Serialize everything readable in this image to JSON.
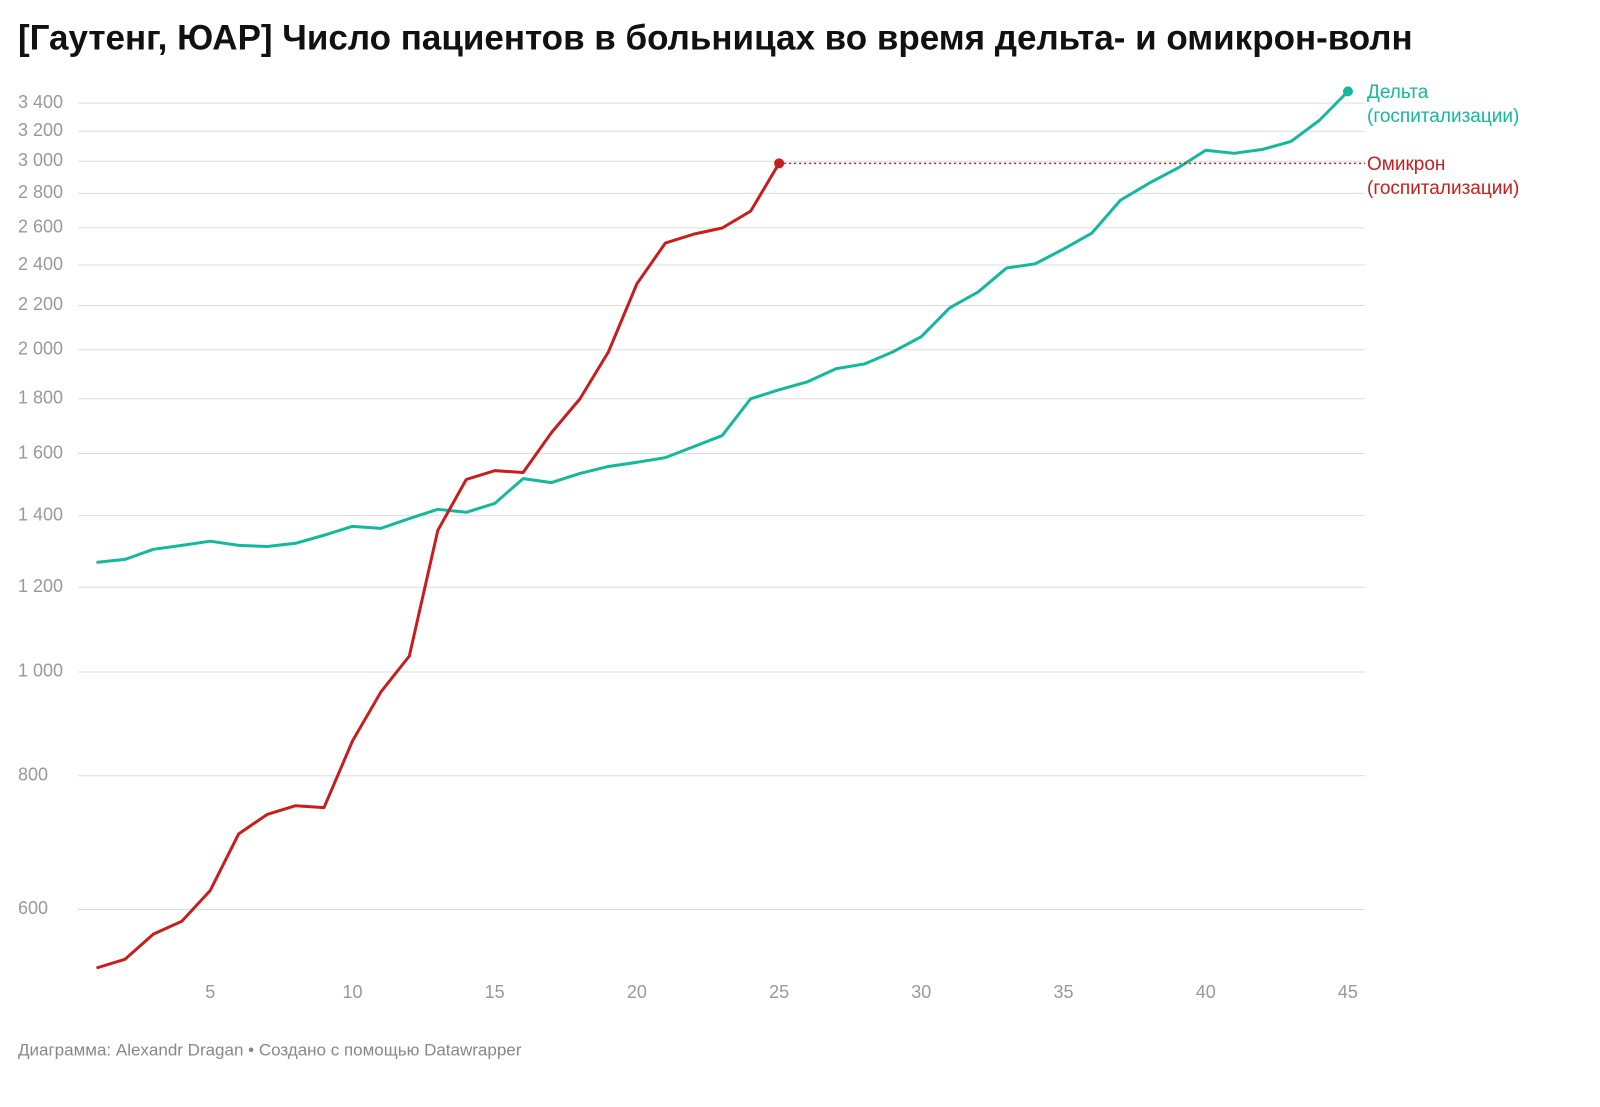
{
  "chart_data": {
    "type": "line",
    "title": "[Гаутенг, ЮАР] Число пациентов в больницах во время дельта- и омикрон-волн",
    "credit": "Диаграмма: Alexandr Dragan • Создано с помощью Datawrapper",
    "log_y": true,
    "grid": true,
    "xlim": [
      0.35,
      45.6
    ],
    "xticks": [
      5,
      10,
      15,
      20,
      25,
      30,
      35,
      40,
      45
    ],
    "ylim": [
      510,
      3520
    ],
    "yticks": [
      {
        "value": 600,
        "label": "600"
      },
      {
        "value": 800,
        "label": "800"
      },
      {
        "value": 1000,
        "label": "1 000"
      },
      {
        "value": 1200,
        "label": "1 200"
      },
      {
        "value": 1400,
        "label": "1 400"
      },
      {
        "value": 1600,
        "label": "1 600"
      },
      {
        "value": 1800,
        "label": "1 800"
      },
      {
        "value": 2000,
        "label": "2 000"
      },
      {
        "value": 2200,
        "label": "2 200"
      },
      {
        "value": 2400,
        "label": "2 400"
      },
      {
        "value": 2600,
        "label": "2 600"
      },
      {
        "value": 2800,
        "label": "2 800"
      },
      {
        "value": 3000,
        "label": "3 000"
      },
      {
        "value": 3200,
        "label": "3 200"
      },
      {
        "value": 3400,
        "label": "3 400"
      }
    ],
    "series": [
      {
        "name": "Дельта (госпитализации)",
        "color": "#14b89c",
        "x": [
          1,
          2,
          3,
          4,
          5,
          6,
          7,
          8,
          9,
          10,
          11,
          12,
          13,
          14,
          15,
          16,
          17,
          18,
          19,
          20,
          21,
          22,
          23,
          24,
          25,
          26,
          27,
          28,
          29,
          30,
          31,
          32,
          33,
          34,
          35,
          36,
          37,
          38,
          39,
          40,
          41,
          42,
          43,
          44,
          45
        ],
        "values": [
          1266,
          1274,
          1302,
          1313,
          1325,
          1313,
          1310,
          1319,
          1342,
          1368,
          1362,
          1391,
          1419,
          1410,
          1437,
          1516,
          1503,
          1533,
          1556,
          1570,
          1586,
          1624,
          1663,
          1800,
          1835,
          1867,
          1920,
          1940,
          1991,
          2057,
          2189,
          2265,
          2385,
          2406,
          2484,
          2571,
          2759,
          2861,
          2955,
          3072,
          3052,
          3078,
          3131,
          3277,
          3487
        ]
      },
      {
        "name": "Омикрон (госпитализации)",
        "color": "#c71e1d",
        "x": [
          1,
          2,
          3,
          4,
          5,
          6,
          7,
          8,
          9,
          10,
          11,
          12,
          13,
          14,
          15,
          16,
          17,
          18,
          19,
          20,
          21,
          22,
          23,
          24,
          25
        ],
        "values": [
          529,
          539,
          569,
          585,
          625,
          706,
          736,
          750,
          747,
          862,
          958,
          1035,
          1356,
          1513,
          1542,
          1536,
          1674,
          1800,
          1991,
          2305,
          2516,
          2565,
          2599,
          2695,
          2987
        ]
      }
    ]
  }
}
